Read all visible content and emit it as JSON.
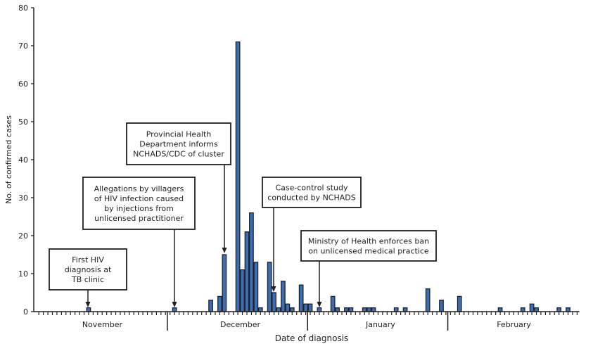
{
  "chart_data": {
    "type": "bar",
    "title": "",
    "xlabel": "Date of diagnosis",
    "ylabel": "No. of confirmed cases",
    "ylim": [
      0,
      80
    ],
    "yticks": [
      0,
      10,
      20,
      30,
      40,
      50,
      60,
      70,
      80
    ],
    "grid": false,
    "x_unit": "day",
    "months": [
      {
        "label": "November",
        "days": 30
      },
      {
        "label": "December",
        "days": 31
      },
      {
        "label": "January",
        "days": 31
      },
      {
        "label": "February",
        "days": 28
      }
    ],
    "bar_color": "#3a6fb5",
    "values_by_date": [
      {
        "date": "Nov 12",
        "value": 1
      },
      {
        "date": "Dec 1",
        "value": 1
      },
      {
        "date": "Dec 9",
        "value": 3
      },
      {
        "date": "Dec 11",
        "value": 4
      },
      {
        "date": "Dec 12",
        "value": 15
      },
      {
        "date": "Dec 15",
        "value": 71
      },
      {
        "date": "Dec 16",
        "value": 11
      },
      {
        "date": "Dec 17",
        "value": 21
      },
      {
        "date": "Dec 18",
        "value": 26
      },
      {
        "date": "Dec 19",
        "value": 13
      },
      {
        "date": "Dec 20",
        "value": 1
      },
      {
        "date": "Dec 22",
        "value": 13
      },
      {
        "date": "Dec 23",
        "value": 5
      },
      {
        "date": "Dec 24",
        "value": 1
      },
      {
        "date": "Dec 25",
        "value": 8
      },
      {
        "date": "Dec 26",
        "value": 2
      },
      {
        "date": "Dec 27",
        "value": 1
      },
      {
        "date": "Dec 29",
        "value": 7
      },
      {
        "date": "Dec 30",
        "value": 2
      },
      {
        "date": "Dec 31",
        "value": 2
      },
      {
        "date": "Jan 2",
        "value": 1
      },
      {
        "date": "Jan 5",
        "value": 4
      },
      {
        "date": "Jan 6",
        "value": 1
      },
      {
        "date": "Jan 8",
        "value": 1
      },
      {
        "date": "Jan 9",
        "value": 1
      },
      {
        "date": "Jan 12",
        "value": 1
      },
      {
        "date": "Jan 13",
        "value": 1
      },
      {
        "date": "Jan 14",
        "value": 1
      },
      {
        "date": "Jan 19",
        "value": 1
      },
      {
        "date": "Jan 21",
        "value": 1
      },
      {
        "date": "Jan 26",
        "value": 6
      },
      {
        "date": "Jan 29",
        "value": 3
      },
      {
        "date": "Feb 2",
        "value": 4
      },
      {
        "date": "Feb 11",
        "value": 1
      },
      {
        "date": "Feb 16",
        "value": 1
      },
      {
        "date": "Feb 18",
        "value": 2
      },
      {
        "date": "Feb 19",
        "value": 1
      },
      {
        "date": "Feb 24",
        "value": 1
      },
      {
        "date": "Feb 26",
        "value": 1
      }
    ],
    "annotations": [
      {
        "date": "Nov 12",
        "lines": [
          "First HIV",
          "diagnosis at",
          "TB clinic"
        ]
      },
      {
        "date": "Dec 1",
        "lines": [
          "Allegations by villagers",
          "of HIV infection caused",
          "by injections from",
          "unlicensed practitioner"
        ]
      },
      {
        "date": "Dec 12",
        "lines": [
          "Provincial Health",
          "Department informs",
          "NCHADS/CDC of cluster"
        ]
      },
      {
        "date": "Dec 23",
        "lines": [
          "Case-control study",
          "conducted by NCHADS"
        ]
      },
      {
        "date": "Jan 2",
        "lines": [
          "Ministry of Health enforces ban",
          "on unlicensed medical practice"
        ]
      }
    ]
  }
}
